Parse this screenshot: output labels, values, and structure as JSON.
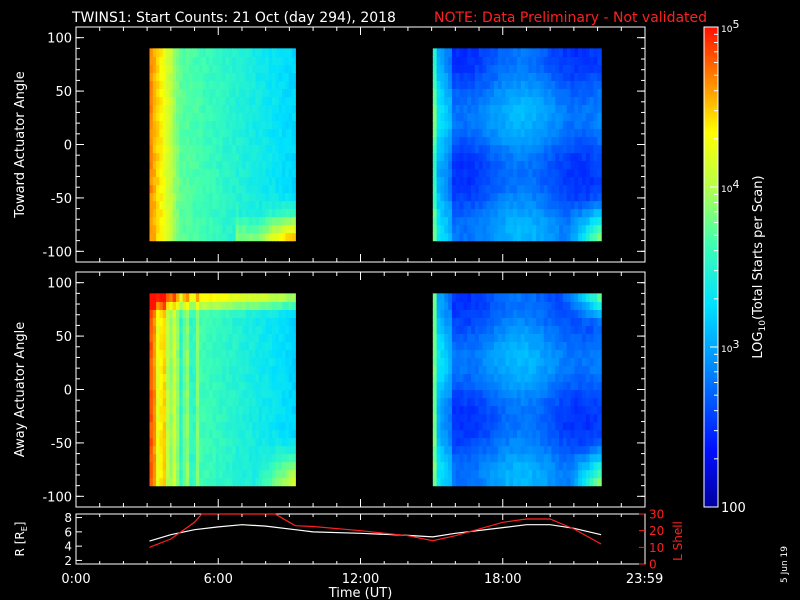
{
  "title": {
    "main": "TWINS1: Start Counts: 21 Oct (day 294), 2018",
    "note": "NOTE: Data Preliminary - Not validated"
  },
  "colors": {
    "background": "#000000",
    "foreground": "#ffffff",
    "note": "#ff2020",
    "lshell": "#ff2020",
    "radius": "#ffffff"
  },
  "panels": [
    {
      "ylabel": "Toward Actuator Angle",
      "ylim": [
        -110,
        110
      ],
      "yticks": [
        {
          "v": 100,
          "label": "100"
        },
        {
          "v": 50,
          "label": "50"
        },
        {
          "v": 0,
          "label": "0"
        },
        {
          "v": -50,
          "label": "-50"
        },
        {
          "v": -100,
          "label": "-100"
        }
      ],
      "blocks": [
        {
          "t0": 3.1,
          "t1": 9.25,
          "a0": -90,
          "a1": 90
        },
        {
          "t0": 15.05,
          "t1": 22.15,
          "a0": -90,
          "a1": 90
        }
      ]
    },
    {
      "ylabel": "Away Actuator Angle",
      "ylim": [
        -110,
        110
      ],
      "yticks": [
        {
          "v": 100,
          "label": "100"
        },
        {
          "v": 50,
          "label": "50"
        },
        {
          "v": 0,
          "label": "0"
        },
        {
          "v": -50,
          "label": "-50"
        },
        {
          "v": -100,
          "label": "-100"
        }
      ],
      "blocks": [
        {
          "t0": 3.1,
          "t1": 9.25,
          "a0": -90,
          "a1": 90
        },
        {
          "t0": 15.05,
          "t1": 22.15,
          "a0": -90,
          "a1": 90
        }
      ]
    }
  ],
  "colorbar": {
    "label_pre": "LOG",
    "label_sub": "10",
    "label_post": "(Total Starts per Scan)",
    "ticks": [
      {
        "log": 5,
        "label": "10",
        "sup": "5"
      },
      {
        "log": 4,
        "label": "10",
        "sup": "4"
      },
      {
        "log": 3,
        "label": "10",
        "sup": "3"
      },
      {
        "log": 2,
        "label": "100",
        "sup": ""
      }
    ],
    "range": [
      2,
      5
    ]
  },
  "bottom": {
    "left_label_pre": "R [R",
    "left_label_sub": "E",
    "left_label_post": "]",
    "right_label": "L Shell",
    "left_ylim": [
      1.5,
      8.5
    ],
    "right_ylim": [
      0,
      30
    ],
    "left_ticks": [
      "2",
      "4",
      "6",
      "8"
    ],
    "right_ticks": [
      "0",
      "10",
      "20",
      "30"
    ]
  },
  "xaxis": {
    "xlabel": "Time (UT)",
    "xlim": [
      0,
      24
    ],
    "ticks": [
      {
        "t": 0,
        "label": "0:00"
      },
      {
        "t": 6,
        "label": "6:00"
      },
      {
        "t": 12,
        "label": "12:00"
      },
      {
        "t": 18,
        "label": "18:00"
      },
      {
        "t": 23.983,
        "label": "23:59"
      }
    ]
  },
  "side_date": "5 Jun 19",
  "chart_data": {
    "type": "heatmap",
    "title": "TWINS1: Start Counts: 21 Oct (day 294), 2018",
    "x_unit": "hours UT",
    "z_scale": "log10",
    "z_range": [
      2,
      5
    ],
    "series": [
      {
        "name": "R",
        "axis": "left",
        "x": [
          3.1,
          4.0,
          5.0,
          6.0,
          7.0,
          8.0,
          9.25,
          10.0,
          12.0,
          14.0,
          15.05,
          16.0,
          18.0,
          19.0,
          20.0,
          21.0,
          22.15
        ],
        "y": [
          4.7,
          5.6,
          6.3,
          6.7,
          7.0,
          6.8,
          6.3,
          6.0,
          5.8,
          5.5,
          5.3,
          5.8,
          6.6,
          7.0,
          7.0,
          6.5,
          5.6
        ]
      },
      {
        "name": "L Shell",
        "axis": "right",
        "x": [
          3.1,
          4.0,
          5.0,
          5.3,
          8.4,
          9.0,
          9.25,
          10.0,
          12.0,
          14.0,
          15.05,
          16.0,
          18.0,
          19.0,
          20.0,
          21.0,
          22.15
        ],
        "y": [
          10,
          15,
          25,
          30,
          30,
          25,
          23,
          22.5,
          20,
          17,
          14,
          17,
          25,
          27,
          27,
          21,
          12
        ]
      }
    ]
  }
}
